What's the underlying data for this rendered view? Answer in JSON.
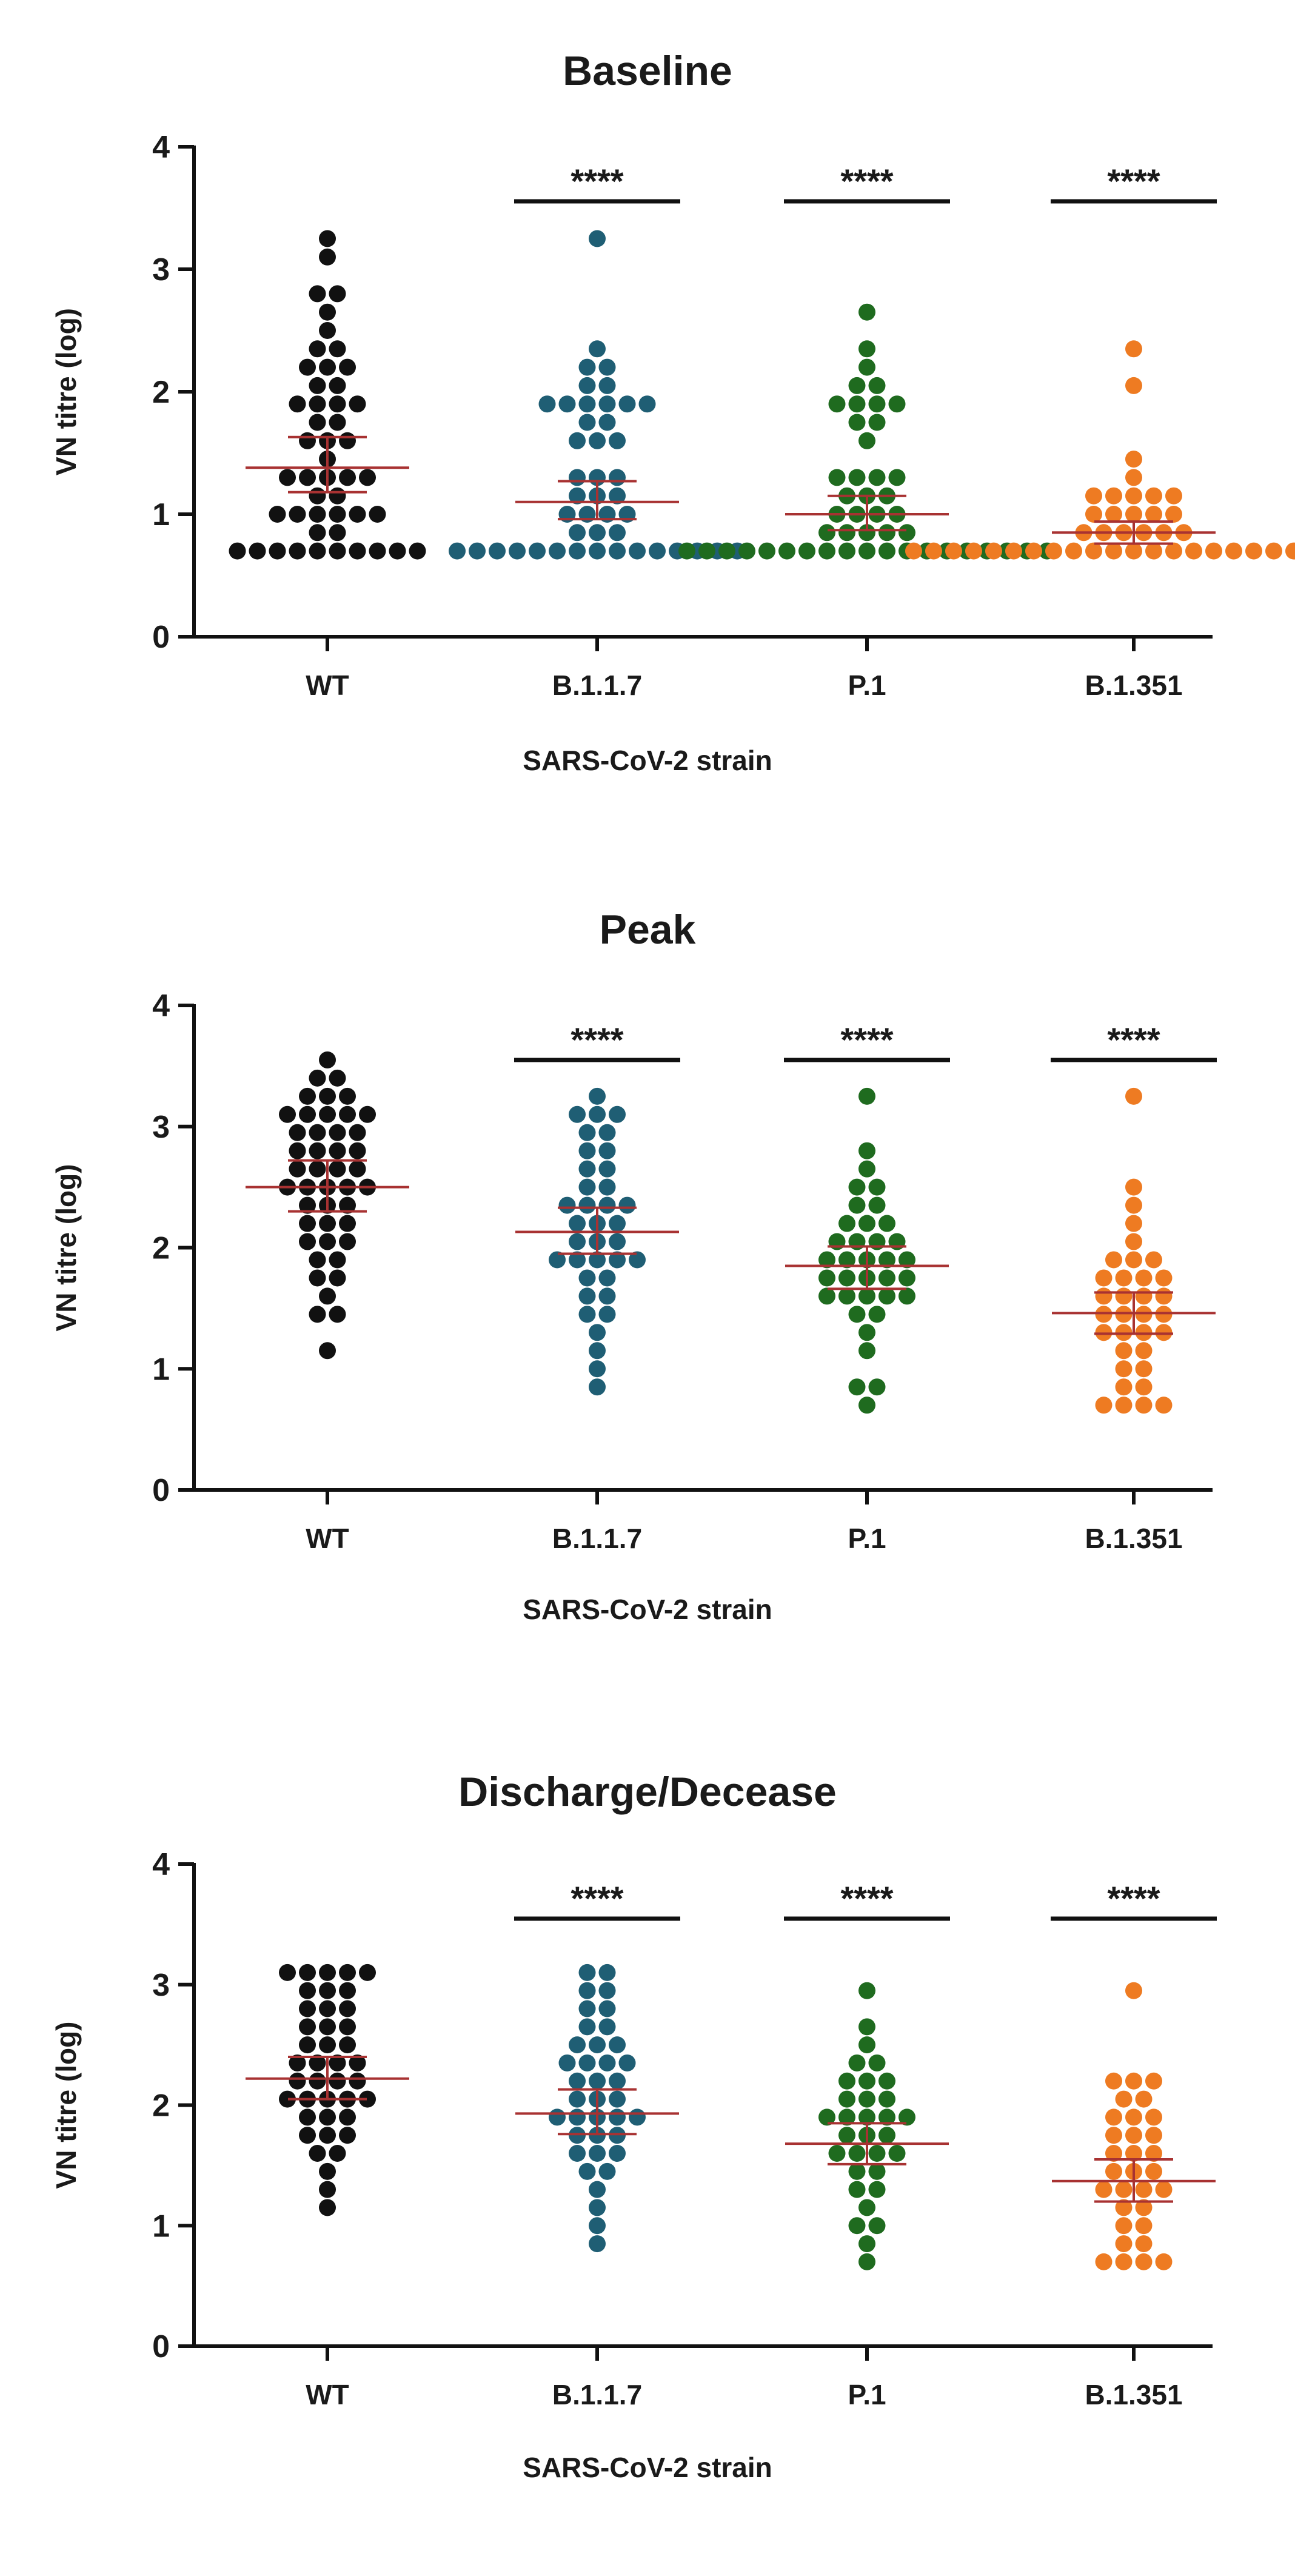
{
  "chart_data": [
    {
      "type": "scatter",
      "title": "Baseline",
      "xlabel": "SARS-CoV-2 strain",
      "ylabel": "VN titre (log)",
      "ylim": [
        0,
        4
      ],
      "yticks": [
        "0",
        "1",
        "2",
        "3",
        "4"
      ],
      "categories": [
        "WT",
        "B.1.1.7",
        "P.1",
        "B.1.351"
      ],
      "colors": [
        "#111111",
        "#1f5e74",
        "#1f6b1f",
        "#ee7b22"
      ],
      "summary_color": "#a83232",
      "significance": [
        "",
        "****",
        "****",
        "****"
      ],
      "series": [
        {
          "name": "WT",
          "mean": 1.38,
          "ci_low": 1.18,
          "ci_high": 1.63,
          "values": [
            0.7,
            0.7,
            0.7,
            0.7,
            0.7,
            0.7,
            0.7,
            0.7,
            0.7,
            0.7,
            0.85,
            0.85,
            1.0,
            1.0,
            1.0,
            1.0,
            1.0,
            1.0,
            1.15,
            1.15,
            1.3,
            1.3,
            1.3,
            1.3,
            1.3,
            1.45,
            1.6,
            1.6,
            1.6,
            1.75,
            1.75,
            1.9,
            1.9,
            1.9,
            1.9,
            2.05,
            2.05,
            2.2,
            2.2,
            2.2,
            2.35,
            2.35,
            2.5,
            2.65,
            2.8,
            2.8,
            3.1,
            3.25
          ]
        },
        {
          "name": "B.1.1.7",
          "mean": 1.1,
          "ci_low": 0.96,
          "ci_high": 1.27,
          "values": [
            0.7,
            0.7,
            0.7,
            0.7,
            0.7,
            0.7,
            0.7,
            0.7,
            0.7,
            0.7,
            0.7,
            0.7,
            0.7,
            0.7,
            0.7,
            0.85,
            0.85,
            0.85,
            1.0,
            1.0,
            1.0,
            1.0,
            1.15,
            1.15,
            1.15,
            1.3,
            1.3,
            1.3,
            1.6,
            1.6,
            1.6,
            1.75,
            1.75,
            1.9,
            1.9,
            1.9,
            1.9,
            1.9,
            1.9,
            2.05,
            2.05,
            2.2,
            2.2,
            2.35,
            3.25
          ]
        },
        {
          "name": "P.1",
          "mean": 1.0,
          "ci_low": 0.87,
          "ci_high": 1.15,
          "values": [
            0.7,
            0.7,
            0.7,
            0.7,
            0.7,
            0.7,
            0.7,
            0.7,
            0.7,
            0.7,
            0.7,
            0.7,
            0.7,
            0.7,
            0.7,
            0.7,
            0.7,
            0.7,
            0.7,
            0.85,
            0.85,
            0.85,
            0.85,
            0.85,
            1.0,
            1.0,
            1.0,
            1.0,
            1.15,
            1.15,
            1.15,
            1.3,
            1.3,
            1.3,
            1.3,
            1.6,
            1.75,
            1.75,
            1.9,
            1.9,
            1.9,
            1.9,
            2.05,
            2.05,
            2.2,
            2.35,
            2.65
          ]
        },
        {
          "name": "B.1.351",
          "mean": 0.85,
          "ci_low": 0.76,
          "ci_high": 0.94,
          "values": [
            0.7,
            0.7,
            0.7,
            0.7,
            0.7,
            0.7,
            0.7,
            0.7,
            0.7,
            0.7,
            0.7,
            0.7,
            0.7,
            0.7,
            0.7,
            0.7,
            0.7,
            0.7,
            0.7,
            0.7,
            0.7,
            0.7,
            0.7,
            0.85,
            0.85,
            0.85,
            0.85,
            0.85,
            0.85,
            1.0,
            1.0,
            1.0,
            1.0,
            1.0,
            1.15,
            1.15,
            1.15,
            1.15,
            1.15,
            1.3,
            1.45,
            2.05,
            2.35
          ]
        }
      ]
    },
    {
      "type": "scatter",
      "title": "Peak",
      "xlabel": "SARS-CoV-2 strain",
      "ylabel": "VN titre (log)",
      "ylim": [
        0,
        4
      ],
      "yticks": [
        "0",
        "1",
        "2",
        "3",
        "4"
      ],
      "categories": [
        "WT",
        "B.1.1.7",
        "P.1",
        "B.1.351"
      ],
      "colors": [
        "#111111",
        "#1f5e74",
        "#1f6b1f",
        "#ee7b22"
      ],
      "summary_color": "#a83232",
      "significance": [
        "",
        "****",
        "****",
        "****"
      ],
      "series": [
        {
          "name": "WT",
          "mean": 2.5,
          "ci_low": 2.3,
          "ci_high": 2.72,
          "values": [
            1.15,
            1.45,
            1.45,
            1.6,
            1.75,
            1.75,
            1.9,
            1.9,
            2.05,
            2.05,
            2.05,
            2.2,
            2.2,
            2.2,
            2.35,
            2.35,
            2.35,
            2.5,
            2.5,
            2.5,
            2.5,
            2.5,
            2.65,
            2.65,
            2.65,
            2.65,
            2.8,
            2.8,
            2.8,
            2.8,
            2.95,
            2.95,
            2.95,
            2.95,
            3.1,
            3.1,
            3.1,
            3.1,
            3.1,
            3.25,
            3.25,
            3.25,
            3.4,
            3.4,
            3.55
          ]
        },
        {
          "name": "B.1.1.7",
          "mean": 2.13,
          "ci_low": 1.95,
          "ci_high": 2.33,
          "values": [
            0.85,
            1.0,
            1.15,
            1.3,
            1.45,
            1.45,
            1.6,
            1.6,
            1.75,
            1.75,
            1.9,
            1.9,
            1.9,
            1.9,
            1.9,
            2.05,
            2.05,
            2.05,
            2.2,
            2.2,
            2.2,
            2.35,
            2.35,
            2.35,
            2.35,
            2.5,
            2.5,
            2.65,
            2.65,
            2.8,
            2.8,
            2.95,
            2.95,
            3.1,
            3.1,
            3.1,
            3.25
          ]
        },
        {
          "name": "P.1",
          "mean": 1.85,
          "ci_low": 1.66,
          "ci_high": 2.01,
          "values": [
            0.7,
            0.85,
            0.85,
            1.15,
            1.3,
            1.45,
            1.45,
            1.6,
            1.6,
            1.6,
            1.6,
            1.6,
            1.75,
            1.75,
            1.75,
            1.75,
            1.75,
            1.9,
            1.9,
            1.9,
            1.9,
            1.9,
            2.05,
            2.05,
            2.05,
            2.05,
            2.2,
            2.2,
            2.2,
            2.35,
            2.35,
            2.5,
            2.5,
            2.65,
            2.8,
            3.25
          ]
        },
        {
          "name": "B.1.351",
          "mean": 1.46,
          "ci_low": 1.29,
          "ci_high": 1.63,
          "values": [
            0.7,
            0.7,
            0.7,
            0.7,
            0.85,
            0.85,
            1.0,
            1.0,
            1.15,
            1.15,
            1.3,
            1.3,
            1.3,
            1.3,
            1.45,
            1.45,
            1.45,
            1.45,
            1.6,
            1.6,
            1.6,
            1.6,
            1.75,
            1.75,
            1.75,
            1.75,
            1.9,
            1.9,
            1.9,
            2.05,
            2.2,
            2.35,
            2.5,
            3.25
          ]
        }
      ]
    },
    {
      "type": "scatter",
      "title": "Discharge/Decease",
      "xlabel": "SARS-CoV-2 strain",
      "ylabel": "VN titre (log)",
      "ylim": [
        0,
        4
      ],
      "yticks": [
        "0",
        "1",
        "2",
        "3",
        "4"
      ],
      "categories": [
        "WT",
        "B.1.1.7",
        "P.1",
        "B.1.351"
      ],
      "colors": [
        "#111111",
        "#1f5e74",
        "#1f6b1f",
        "#ee7b22"
      ],
      "summary_color": "#a83232",
      "significance": [
        "",
        "****",
        "****",
        "****"
      ],
      "series": [
        {
          "name": "WT",
          "mean": 2.22,
          "ci_low": 2.05,
          "ci_high": 2.4,
          "values": [
            1.15,
            1.3,
            1.45,
            1.6,
            1.6,
            1.75,
            1.75,
            1.75,
            1.9,
            1.9,
            1.9,
            2.05,
            2.05,
            2.05,
            2.05,
            2.05,
            2.2,
            2.2,
            2.2,
            2.2,
            2.35,
            2.35,
            2.35,
            2.35,
            2.5,
            2.5,
            2.5,
            2.65,
            2.65,
            2.65,
            2.8,
            2.8,
            2.8,
            2.95,
            2.95,
            2.95,
            3.1,
            3.1,
            3.1,
            3.1,
            3.1
          ]
        },
        {
          "name": "B.1.1.7",
          "mean": 1.93,
          "ci_low": 1.76,
          "ci_high": 2.13,
          "values": [
            0.85,
            1.0,
            1.15,
            1.3,
            1.45,
            1.45,
            1.6,
            1.6,
            1.6,
            1.75,
            1.75,
            1.75,
            1.9,
            1.9,
            1.9,
            1.9,
            1.9,
            2.05,
            2.05,
            2.05,
            2.2,
            2.2,
            2.2,
            2.35,
            2.35,
            2.35,
            2.35,
            2.5,
            2.5,
            2.5,
            2.65,
            2.65,
            2.8,
            2.8,
            2.95,
            2.95,
            3.1,
            3.1
          ]
        },
        {
          "name": "P.1",
          "mean": 1.68,
          "ci_low": 1.51,
          "ci_high": 1.85,
          "values": [
            0.7,
            0.85,
            1.0,
            1.0,
            1.15,
            1.3,
            1.3,
            1.45,
            1.45,
            1.6,
            1.6,
            1.6,
            1.6,
            1.75,
            1.75,
            1.75,
            1.9,
            1.9,
            1.9,
            1.9,
            1.9,
            2.05,
            2.05,
            2.05,
            2.2,
            2.2,
            2.2,
            2.35,
            2.35,
            2.5,
            2.65,
            2.95
          ]
        },
        {
          "name": "B.1.351",
          "mean": 1.37,
          "ci_low": 1.2,
          "ci_high": 1.55,
          "values": [
            0.7,
            0.7,
            0.7,
            0.7,
            0.85,
            0.85,
            1.0,
            1.0,
            1.15,
            1.15,
            1.3,
            1.3,
            1.3,
            1.3,
            1.45,
            1.45,
            1.45,
            1.6,
            1.6,
            1.6,
            1.75,
            1.75,
            1.75,
            1.9,
            1.9,
            1.9,
            2.05,
            2.05,
            2.2,
            2.2,
            2.2,
            2.95
          ]
        }
      ]
    }
  ]
}
